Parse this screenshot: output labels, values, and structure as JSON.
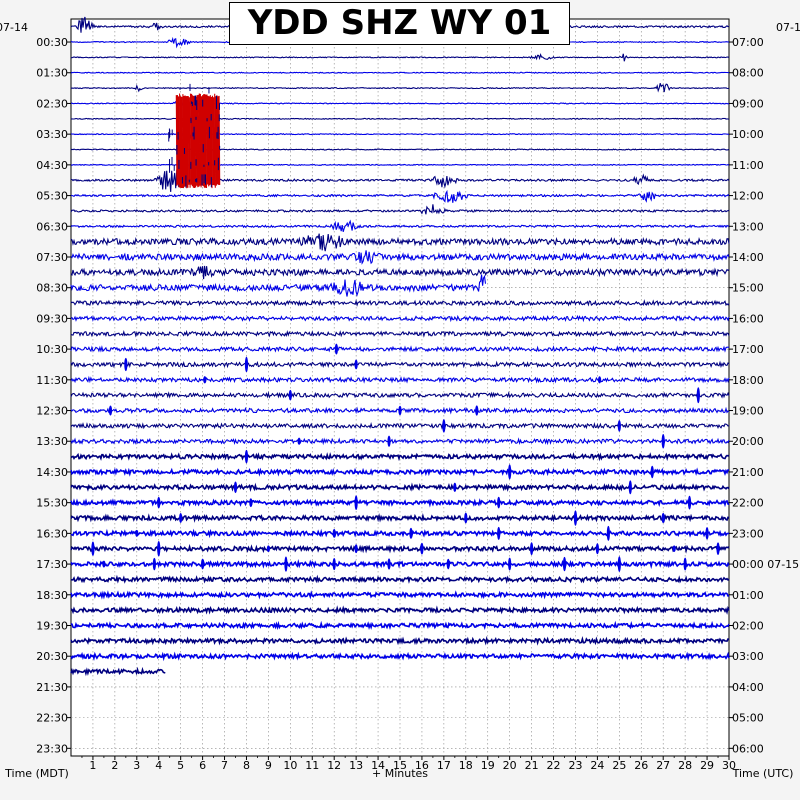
{
  "title": "YDD SHZ WY 01",
  "chart_data": {
    "type": "helicorder",
    "title": "YDD SHZ WY 01",
    "xlabel": "+ Minutes",
    "left_axis_label": "Time (MDT)",
    "right_axis_label": "Time (UTC)",
    "left_date": "07-14",
    "right_date": "07-1",
    "x_ticks": [
      "1",
      "2",
      "3",
      "4",
      "5",
      "6",
      "7",
      "8",
      "9",
      "10",
      "11",
      "12",
      "13",
      "14",
      "15",
      "16",
      "17",
      "18",
      "19",
      "20",
      "21",
      "22",
      "23",
      "24",
      "25",
      "26",
      "27",
      "28",
      "29",
      "30"
    ],
    "xlim": [
      0,
      30
    ],
    "left_labels": [
      "00:30",
      "01:30",
      "02:30",
      "03:30",
      "04:30",
      "05:30",
      "06:30",
      "07:30",
      "08:30",
      "09:30",
      "10:30",
      "11:30",
      "12:30",
      "13:30",
      "14:30",
      "15:30",
      "16:30",
      "17:30",
      "18:30",
      "19:30",
      "20:30",
      "21:30",
      "22:30",
      "23:30"
    ],
    "right_labels": [
      "07:00",
      "08:00",
      "09:00",
      "10:00",
      "11:00",
      "12:00",
      "13:00",
      "14:00",
      "15:00",
      "16:00",
      "17:00",
      "18:00",
      "19:00",
      "20:00",
      "21:00",
      "22:00",
      "23:00",
      "00:00 07-15",
      "01:00",
      "02:00",
      "03:00",
      "04:00",
      "05:00",
      "06:00"
    ],
    "minutes_per_line": 30,
    "lines_recorded": 43,
    "grid": true,
    "trace_colors": [
      "#000080",
      "#0000e8"
    ],
    "clip_color": "#d00000"
  }
}
